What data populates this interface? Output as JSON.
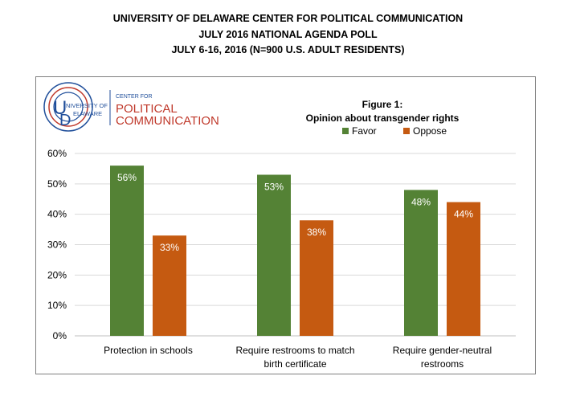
{
  "header": {
    "line1": "UNIVERSITY OF DELAWARE CENTER FOR POLITICAL COMMUNICATION",
    "line2": "JULY 2016 NATIONAL AGENDA POLL",
    "line3": "JULY 6-16, 2016 (N=900 U.S. ADULT RESIDENTS)"
  },
  "logo": {
    "university_line1": "NIVERSITY OF",
    "university_line2": "ELAWARE",
    "center_for": "CENTER FOR",
    "political": "POLITICAL",
    "communication": "COMMUNICATION",
    "colors": {
      "blue": "#1f4e9a",
      "red": "#c0392b"
    }
  },
  "chart_data": {
    "type": "bar",
    "title": "Figure 1:",
    "subtitle": "Opinion about transgender rights",
    "categories": [
      [
        "Protection in schools"
      ],
      [
        "Require restrooms to match",
        "birth certificate"
      ],
      [
        "Require gender-neutral",
        "restrooms"
      ]
    ],
    "series": [
      {
        "name": "Favor",
        "values": [
          56,
          53,
          48
        ],
        "labels": [
          "56%",
          "53%",
          "48%"
        ],
        "color": "#548235"
      },
      {
        "name": "Oppose",
        "values": [
          33,
          38,
          44
        ],
        "labels": [
          "33%",
          "38%",
          "44%"
        ],
        "color": "#c55a11"
      }
    ],
    "yticks": [
      "0%",
      "10%",
      "20%",
      "30%",
      "40%",
      "50%",
      "60%"
    ],
    "ylim": [
      0,
      60
    ],
    "grid": true,
    "legend": "top-center"
  }
}
